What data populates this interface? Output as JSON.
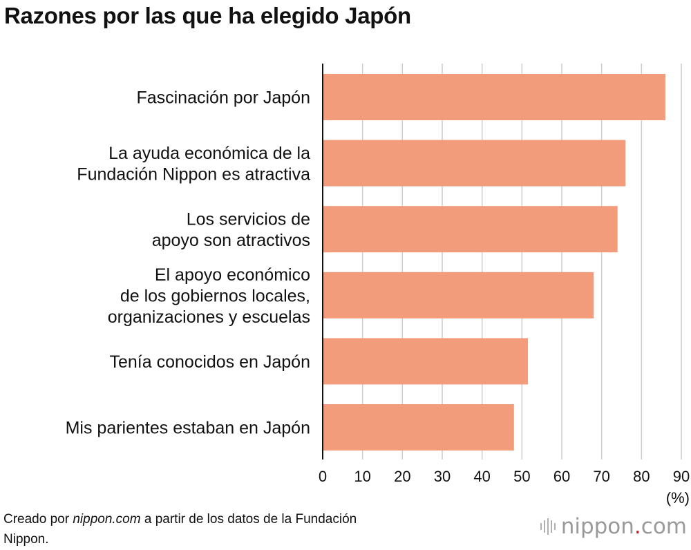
{
  "chart_data": {
    "type": "bar",
    "orientation": "horizontal",
    "title": "Razones por las que ha elegido Japón",
    "categories": [
      [
        "Fascinación por Japón"
      ],
      [
        "La ayuda económica de la",
        "Fundación Nippon es atractiva"
      ],
      [
        "Los servicios de",
        "apoyo son atractivos"
      ],
      [
        "El apoyo económico",
        "de los gobiernos locales,",
        "organizaciones y escuelas"
      ],
      [
        "Tenía conocidos en Japón"
      ],
      [
        "Mis parientes estaban en Japón"
      ]
    ],
    "values": [
      86,
      76,
      74,
      68,
      51.5,
      48
    ],
    "xlim": [
      0,
      90
    ],
    "xticks": [
      0,
      10,
      20,
      30,
      40,
      50,
      60,
      70,
      80,
      90
    ],
    "unit_label": "(%)",
    "grid": true,
    "bar_color": "#f29c7c"
  },
  "source": {
    "prefix": "Creado por ",
    "site": "nippon.com",
    "suffix": " a partir de los datos de la Fundación Nippon."
  },
  "brand": {
    "name": "nippon",
    "dot": ".",
    "tld": "com",
    "dot_color": "#c41c24"
  }
}
